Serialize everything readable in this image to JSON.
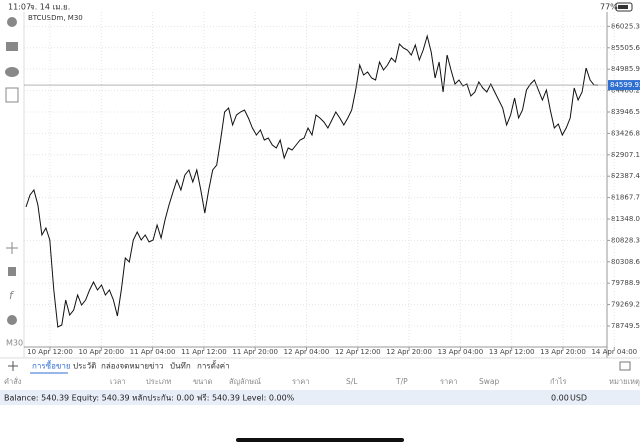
{
  "status_bar": {
    "time": "11:07",
    "date": "จ. 14 เม.ย.",
    "battery": "77%"
  },
  "timeframe": "M30",
  "chart_data": {
    "type": "line",
    "title": "BTCUSDm, M30",
    "color": "#111111",
    "grid": true,
    "values": [
      81640,
      81931,
      82052,
      81688,
      80960,
      81130,
      80838,
      79624,
      78725,
      78774,
      79381,
      79017,
      79138,
      79502,
      79260,
      79381,
      79624,
      79818,
      79624,
      79745,
      79502,
      79624,
      79381,
      78992,
      79624,
      80401,
      80304,
      80838,
      81032,
      80838,
      80960,
      80789,
      80838,
      81202,
      80886,
      81324,
      81688,
      82003,
      82295,
      82052,
      82416,
      82538,
      82246,
      82538,
      82052,
      81494,
      82052,
      82538,
      82659,
      83266,
      83946,
      84043,
      83631,
      83874,
      83946,
      83995,
      83801,
      83558,
      83388,
      83509,
      83266,
      83315,
      83145,
      83072,
      83266,
      82829,
      83072,
      83023,
      83145,
      83266,
      83315,
      83558,
      83388,
      83874,
      83801,
      83704,
      83558,
      83752,
      83946,
      83801,
      83631,
      83801,
      83995,
      84481,
      85088,
      84845,
      84918,
      84772,
      84724,
      85161,
      84966,
      85088,
      85258,
      85161,
      85598,
      85501,
      85452,
      85331,
      85574,
      85209,
      85452,
      85792,
      85404,
      84772,
      85161,
      84432,
      85331,
      84966,
      84626,
      84724,
      84578,
      84626,
      84335,
      84432,
      84675,
      84529,
      84432,
      84626,
      84432,
      84238,
      84043,
      83631,
      83874,
      84286,
      83801,
      83995,
      84481,
      84626,
      84724,
      84481,
      84238,
      84481,
      83995,
      83558,
      83655,
      83388,
      83558,
      83801,
      84529,
      84238,
      84432,
      85015,
      84724,
      84602,
      84600
    ],
    "ylim": [
      78288,
      86326
    ],
    "yticks": [
      {
        "value": 86025.3,
        "label": "86025.30"
      },
      {
        "value": 85505.6,
        "label": "85505.60"
      },
      {
        "value": 84985.9,
        "label": "84985.90"
      },
      {
        "value": 84466.2,
        "label": "84466.20"
      },
      {
        "value": 83946.5,
        "label": "83946.50"
      },
      {
        "value": 83426.8,
        "label": "83426.80"
      },
      {
        "value": 82907.1,
        "label": "82907.10"
      },
      {
        "value": 82387.4,
        "label": "82387.40"
      },
      {
        "value": 81867.7,
        "label": "81867.70"
      },
      {
        "value": 81348,
        "label": "81348.00"
      },
      {
        "value": 80828.3,
        "label": "80828.30"
      },
      {
        "value": 80308.6,
        "label": "80308.60"
      },
      {
        "value": 79788.9,
        "label": "79788.90"
      },
      {
        "value": 79269.2,
        "label": "79269.20"
      },
      {
        "value": 78749.5,
        "label": "78749.50"
      }
    ],
    "xticks": [
      "10 Apr 12:00",
      "10 Apr 20:00",
      "11 Apr 04:00",
      "11 Apr 12:00",
      "11 Apr 20:00",
      "12 Apr 04:00",
      "12 Apr 12:00",
      "12 Apr 20:00",
      "13 Apr 04:00",
      "13 Apr 12:00",
      "13 Apr 20:00",
      "14 Apr 04:00"
    ],
    "current_price": {
      "value": 84599.92,
      "label": "84599.92"
    }
  },
  "tabs": [
    "การซื้อขาย",
    "ประวัติ",
    "กล่องจดหมาย",
    "ข่าว",
    "บันทึก",
    "การตั้งค่า"
  ],
  "columns": [
    "คำสั่ง",
    "เวลา",
    "ประเภท",
    "ขนาด",
    "สัญลักษณ์",
    "ราคา",
    "S/L",
    "T/P",
    "ราคา",
    "Swap",
    "กำไร",
    "หมายเหตุ"
  ],
  "balance": {
    "text": "Balance: 540.39 Equity: 540.39 หลักประกัน: 0.00 ฟรี: 540.39 Level: 0.00%",
    "profit": "0.00",
    "currency": "USD"
  }
}
